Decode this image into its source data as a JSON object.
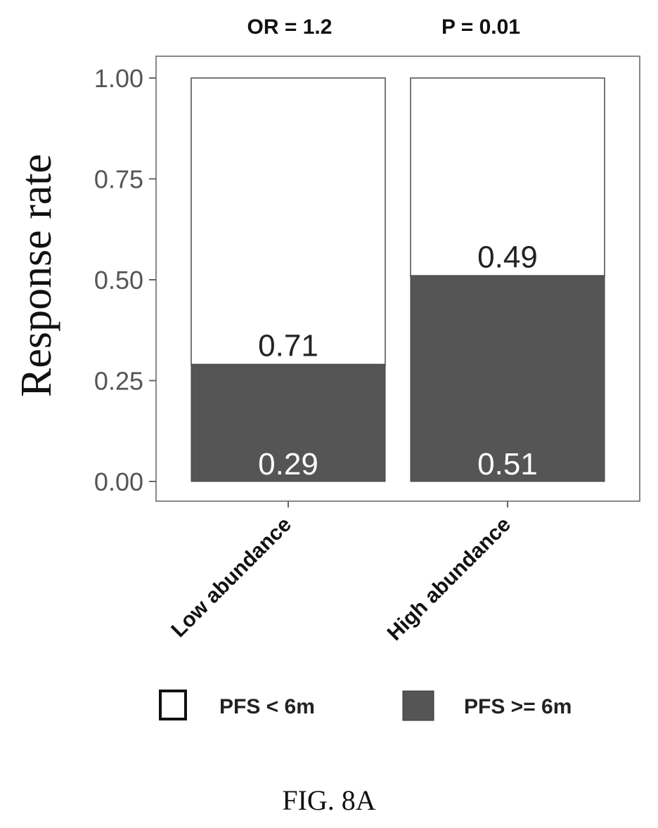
{
  "chart_data": {
    "type": "bar",
    "stacked": true,
    "annotations": [
      "OR = 1.2",
      "P = 0.01"
    ],
    "ylabel": "Response rate",
    "ylim": [
      0,
      1
    ],
    "yticks": [
      "0.00",
      "0.25",
      "0.50",
      "0.75",
      "1.00"
    ],
    "categories": [
      "Low abundance",
      "High abundance"
    ],
    "series": [
      {
        "name": "PFS >= 6m",
        "values": [
          0.29,
          0.51
        ],
        "labels": [
          "0.29",
          "0.51"
        ],
        "color": "#555555"
      },
      {
        "name": "PFS < 6m",
        "values": [
          0.71,
          0.49
        ],
        "labels": [
          "0.71",
          "0.49"
        ],
        "color": "#ffffff"
      }
    ],
    "legend": [
      {
        "label": "PFS < 6m",
        "color": "#ffffff"
      },
      {
        "label": "PFS >= 6m",
        "color": "#555555"
      }
    ],
    "legend_position": "bottom",
    "grid": false
  },
  "caption": "FIG. 8A"
}
